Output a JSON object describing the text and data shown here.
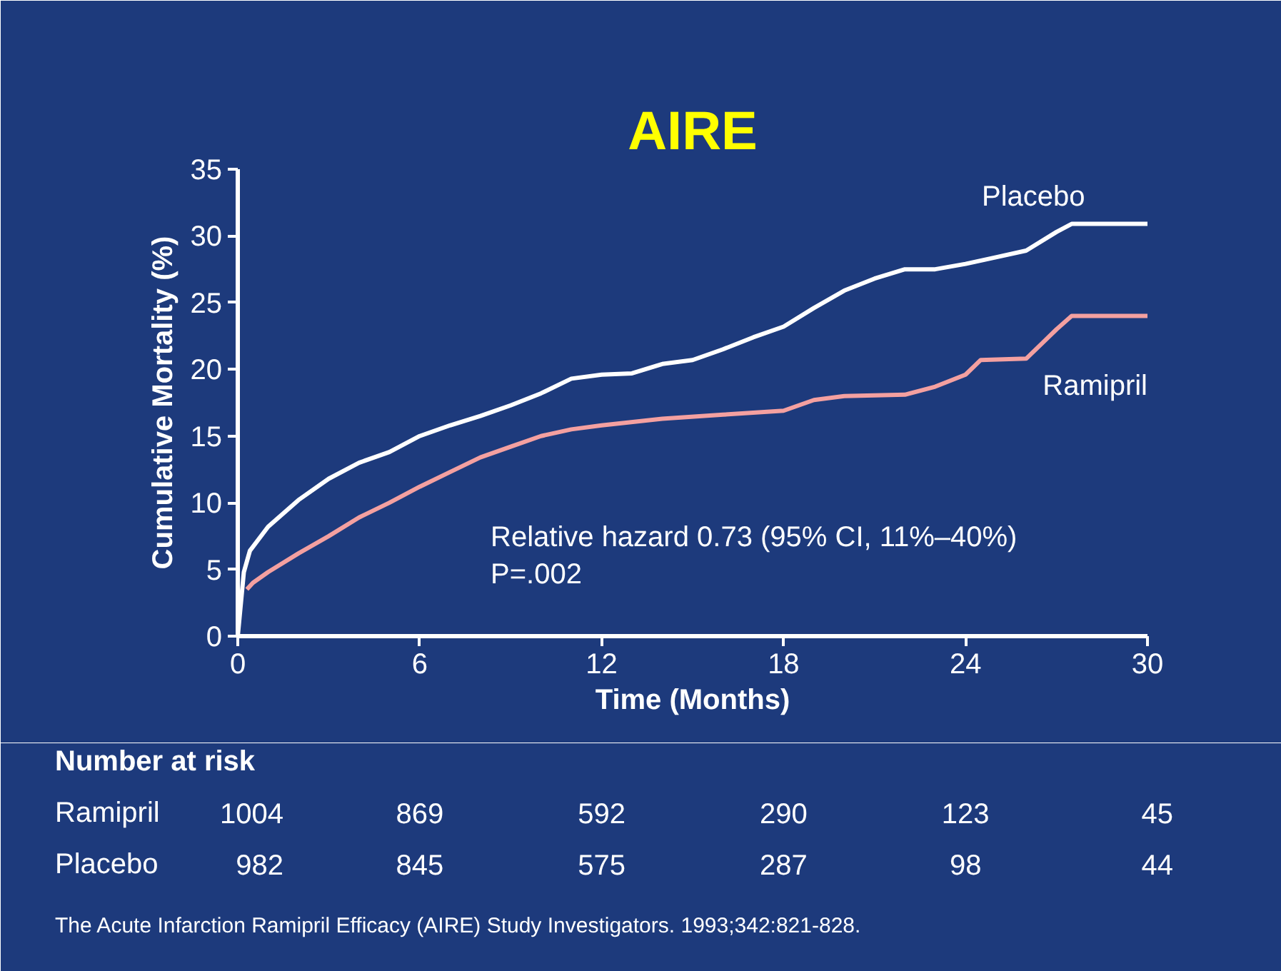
{
  "chart_data": {
    "type": "line",
    "title": "AIRE",
    "xlabel": "Time (Months)",
    "ylabel": "Cumulative Mortality (%)",
    "xlim": [
      0,
      30
    ],
    "xticks": [
      0,
      6,
      12,
      18,
      24,
      30
    ],
    "ylim": [
      0,
      35
    ],
    "yticks": [
      0,
      5,
      10,
      15,
      20,
      25,
      30,
      35
    ],
    "grid": false,
    "legend": false,
    "marker": "none",
    "line_style": "solid",
    "series": [
      {
        "name": "Placebo",
        "color": "#ffffff",
        "x": [
          0,
          0.2,
          0.4,
          1,
          2,
          3,
          4,
          5,
          6,
          7,
          8,
          9,
          10,
          11,
          12,
          13,
          14,
          15,
          16,
          17,
          18,
          19,
          20,
          21,
          22,
          23,
          24,
          25,
          26,
          27,
          27.5,
          30
        ],
        "values": [
          0,
          4.8,
          6.4,
          8.2,
          10.2,
          11.8,
          13,
          13.8,
          15,
          15.8,
          16.5,
          17.3,
          18.2,
          19.3,
          19.6,
          19.7,
          20.4,
          20.7,
          21.5,
          22.4,
          23.2,
          24.6,
          25.9,
          26.8,
          27.5,
          27.5,
          27.9,
          28.4,
          28.9,
          30.3,
          30.9,
          30.9
        ]
      },
      {
        "name": "Ramipril",
        "color": "#f4a0a0",
        "x": [
          0.3,
          0.5,
          1,
          2,
          3,
          4,
          5,
          6,
          7,
          8,
          9,
          10,
          11,
          12,
          14,
          16,
          18,
          19,
          20,
          22,
          23,
          24,
          24.5,
          26,
          26.5,
          27,
          27.5,
          30
        ],
        "values": [
          3.5,
          4,
          4.8,
          6.2,
          7.5,
          8.9,
          10,
          11.2,
          12.3,
          13.4,
          14.2,
          15,
          15.5,
          15.8,
          16.3,
          16.6,
          16.9,
          17.7,
          18,
          18.1,
          18.7,
          19.6,
          20.7,
          20.8,
          21.9,
          23,
          24,
          24
        ]
      }
    ],
    "annotations": [
      "Relative hazard 0.73 (95% CI, 11%–40%)",
      "P=.002",
      "Number at risk",
      "Ramipril",
      "1004",
      "869",
      "592",
      "290",
      "123",
      "45",
      "Placebo",
      "982",
      "845",
      "575",
      "287",
      "98",
      "44",
      "The Acute Infarction Ramipril Efficacy (AIRE) Study Investigators. 1993;342:821-828."
    ]
  }
}
